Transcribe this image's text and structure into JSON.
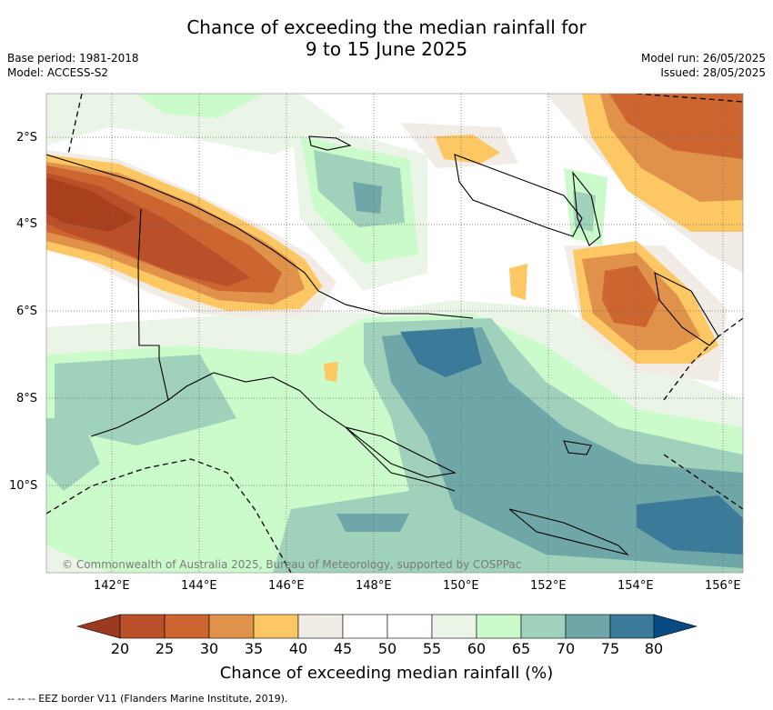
{
  "header": {
    "title_line1": "Chance of exceeding the median rainfall for",
    "title_line2": "9 to 15 June 2025",
    "base_period": "Base period: 1981-2018",
    "model": "Model: ACCESS-S2",
    "model_run": "Model run: 26/05/2025",
    "issued": "Issued: 28/05/2025"
  },
  "map": {
    "lat_labels": [
      "2°S",
      "4°S",
      "6°S",
      "8°S",
      "10°S"
    ],
    "lon_labels": [
      "142°E",
      "144°E",
      "146°E",
      "148°E",
      "150°E",
      "152°E",
      "154°E",
      "156°E"
    ],
    "copyright": "© Commonwealth of Australia 2025, Bureau of Meteorology, supported by COSPPac"
  },
  "colorbar": {
    "labels": [
      "20",
      "25",
      "30",
      "35",
      "40",
      "45",
      "50",
      "55",
      "60",
      "65",
      "70",
      "75",
      "80"
    ],
    "colors": [
      "#a83f1d",
      "#b9502a",
      "#cd6531",
      "#e0914a",
      "#fdc764",
      "#f1ece6",
      "#ffffff",
      "#ffffff",
      "#eaf5e8",
      "#ccfbcb",
      "#9fd1bb",
      "#6fa6a7",
      "#3c7a99"
    ],
    "low_color": "#9b3a1f",
    "high_color": "#0a4a82",
    "title": "Chance of exceeding median rainfall (%)"
  },
  "footer": {
    "legend": "--  --  -- EEZ border V11 (Flanders Marine Institute, 2019)."
  }
}
